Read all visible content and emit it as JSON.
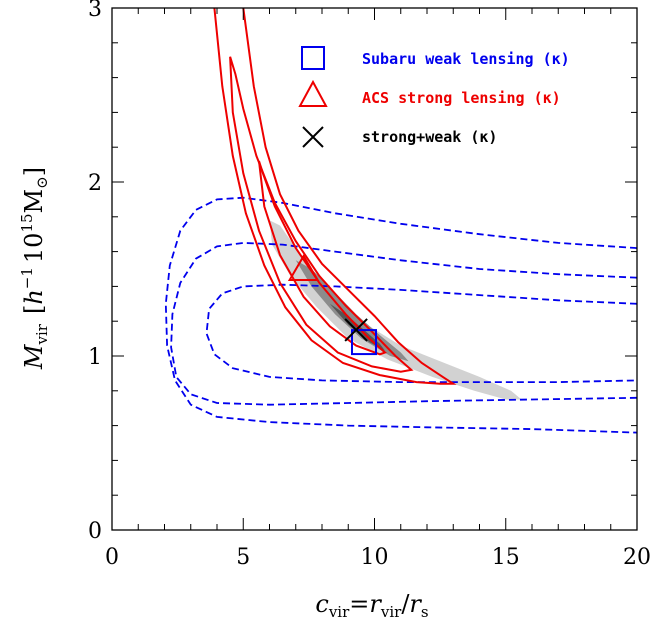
{
  "chart_data": {
    "type": "contour",
    "xlabel": "c_vir = r_vir / r_s",
    "xlabel_parts": {
      "c": "c",
      "c_sub": "vir",
      "eq": "=",
      "r": "r",
      "r_sub": "vir",
      "slash": "/",
      "rs": "r",
      "rs_sub": "s"
    },
    "ylabel": "M_vir [h^-1 10^15 M_sun]",
    "ylabel_parts": {
      "M": "M",
      "M_sub": "vir",
      "open": "[",
      "h": "h",
      "h_sup": "−1",
      "ten": "10",
      "ten_sup": "15",
      "Msun": "M",
      "Msun_sub": "⊙",
      "close": "]"
    },
    "xlim": [
      0,
      20
    ],
    "ylim": [
      0,
      3
    ],
    "xticks": [
      "0",
      "5",
      "10",
      "15",
      "20"
    ],
    "yticks": [
      "0",
      "1",
      "2",
      "3"
    ],
    "grid": false,
    "legend_position": "top-right",
    "series": [
      {
        "name": "Subaru weak lensing (κ)",
        "color": "#0000ee",
        "linestyle": "dashed",
        "marker": "square",
        "best_fit": [
          9.6,
          1.08
        ],
        "contours": [
          [
            [
              20,
              1.62
            ],
            [
              17,
              1.65
            ],
            [
              14,
              1.7
            ],
            [
              11,
              1.76
            ],
            [
              8.5,
              1.82
            ],
            [
              6.5,
              1.88
            ],
            [
              5,
              1.91
            ],
            [
              4,
              1.9
            ],
            [
              3.2,
              1.84
            ],
            [
              2.6,
              1.72
            ],
            [
              2.2,
              1.52
            ],
            [
              2.05,
              1.3
            ],
            [
              2.1,
              1.06
            ],
            [
              2.4,
              0.86
            ],
            [
              3,
              0.72
            ],
            [
              4,
              0.65
            ],
            [
              6,
              0.62
            ],
            [
              9,
              0.6
            ],
            [
              12,
              0.59
            ],
            [
              16,
              0.58
            ],
            [
              20,
              0.56
            ]
          ],
          [
            [
              20,
              1.45
            ],
            [
              17,
              1.47
            ],
            [
              14,
              1.5
            ],
            [
              11,
              1.55
            ],
            [
              8.5,
              1.6
            ],
            [
              6.5,
              1.64
            ],
            [
              5,
              1.65
            ],
            [
              4,
              1.63
            ],
            [
              3.2,
              1.56
            ],
            [
              2.6,
              1.42
            ],
            [
              2.3,
              1.24
            ],
            [
              2.25,
              1.05
            ],
            [
              2.45,
              0.88
            ],
            [
              3,
              0.78
            ],
            [
              4,
              0.73
            ],
            [
              6,
              0.72
            ],
            [
              9,
              0.73
            ],
            [
              12,
              0.74
            ],
            [
              16,
              0.75
            ],
            [
              20,
              0.76
            ]
          ],
          [
            [
              20,
              1.3
            ],
            [
              17,
              1.32
            ],
            [
              14,
              1.35
            ],
            [
              11,
              1.38
            ],
            [
              8.5,
              1.4
            ],
            [
              6.5,
              1.41
            ],
            [
              5,
              1.4
            ],
            [
              4.2,
              1.36
            ],
            [
              3.7,
              1.27
            ],
            [
              3.6,
              1.13
            ],
            [
              3.9,
              1.01
            ],
            [
              4.6,
              0.93
            ],
            [
              6,
              0.88
            ],
            [
              8,
              0.86
            ],
            [
              11,
              0.85
            ],
            [
              14,
              0.85
            ],
            [
              17,
              0.85
            ],
            [
              20,
              0.86
            ]
          ]
        ]
      },
      {
        "name": "ACS strong lensing (κ)",
        "color": "#ee0000",
        "linestyle": "solid",
        "marker": "triangle",
        "best_fit": [
          7.3,
          1.5
        ],
        "contours": [
          [
            [
              3.9,
              3.0
            ],
            [
              4.2,
              2.55
            ],
            [
              4.6,
              2.15
            ],
            [
              5.1,
              1.82
            ],
            [
              5.8,
              1.52
            ],
            [
              6.6,
              1.28
            ],
            [
              7.6,
              1.09
            ],
            [
              8.8,
              0.96
            ],
            [
              10.2,
              0.89
            ],
            [
              11.6,
              0.85
            ],
            [
              12.5,
              0.84
            ],
            [
              13.0,
              0.84
            ],
            [
              12.6,
              0.88
            ],
            [
              11.8,
              0.96
            ],
            [
              10.9,
              1.08
            ],
            [
              10.0,
              1.23
            ],
            [
              9.0,
              1.38
            ],
            [
              8.0,
              1.53
            ],
            [
              7.1,
              1.72
            ],
            [
              6.4,
              1.93
            ],
            [
              5.85,
              2.2
            ],
            [
              5.4,
              2.55
            ],
            [
              5.0,
              3.0
            ]
          ],
          [
            [
              4.5,
              2.72
            ],
            [
              4.6,
              2.4
            ],
            [
              5.0,
              2.05
            ],
            [
              5.6,
              1.72
            ],
            [
              6.4,
              1.42
            ],
            [
              7.4,
              1.18
            ],
            [
              8.6,
              1.02
            ],
            [
              9.9,
              0.94
            ],
            [
              11.0,
              0.91
            ],
            [
              11.4,
              0.92
            ],
            [
              10.8,
              1.0
            ],
            [
              9.9,
              1.14
            ],
            [
              8.9,
              1.29
            ],
            [
              7.9,
              1.46
            ],
            [
              7.0,
              1.66
            ],
            [
              6.2,
              1.88
            ],
            [
              5.5,
              2.15
            ],
            [
              5.0,
              2.42
            ],
            [
              4.7,
              2.62
            ],
            [
              4.5,
              2.72
            ]
          ],
          [
            [
              5.6,
              2.12
            ],
            [
              5.8,
              1.86
            ],
            [
              6.4,
              1.58
            ],
            [
              7.3,
              1.34
            ],
            [
              8.3,
              1.17
            ],
            [
              9.3,
              1.06
            ],
            [
              10.2,
              1.01
            ],
            [
              10.4,
              1.02
            ],
            [
              9.8,
              1.1
            ],
            [
              8.9,
              1.24
            ],
            [
              7.9,
              1.42
            ],
            [
              7.0,
              1.62
            ],
            [
              6.2,
              1.86
            ],
            [
              5.75,
              2.05
            ],
            [
              5.6,
              2.12
            ]
          ]
        ]
      },
      {
        "name": "strong+weak (κ)",
        "color": "#000000",
        "linestyle": "none",
        "marker": "x",
        "best_fit": [
          9.3,
          1.15
        ],
        "confidence_regions": [
          {
            "fill": "#d2d2d2",
            "polygon": [
              [
                6.0,
                1.78
              ],
              [
                6.1,
                1.64
              ],
              [
                6.8,
                1.46
              ],
              [
                7.8,
                1.28
              ],
              [
                9.0,
                1.1
              ],
              [
                10.5,
                0.98
              ],
              [
                12.2,
                0.88
              ],
              [
                13.8,
                0.8
              ],
              [
                15.0,
                0.75
              ],
              [
                15.6,
                0.75
              ],
              [
                15.2,
                0.8
              ],
              [
                14.0,
                0.88
              ],
              [
                12.5,
                0.97
              ],
              [
                11.0,
                1.06
              ],
              [
                9.5,
                1.2
              ],
              [
                8.2,
                1.38
              ],
              [
                7.2,
                1.58
              ],
              [
                6.4,
                1.75
              ],
              [
                6.0,
                1.78
              ]
            ]
          },
          {
            "fill": "#8c8c8c",
            "polygon": [
              [
                7.0,
                1.55
              ],
              [
                7.6,
                1.4
              ],
              [
                8.5,
                1.24
              ],
              [
                9.5,
                1.1
              ],
              [
                10.6,
                1.0
              ],
              [
                11.3,
                0.97
              ],
              [
                11.0,
                1.02
              ],
              [
                10.2,
                1.12
              ],
              [
                9.3,
                1.24
              ],
              [
                8.4,
                1.38
              ],
              [
                7.6,
                1.5
              ],
              [
                7.0,
                1.55
              ]
            ]
          },
          {
            "fill": "#555555",
            "polygon": [
              [
                8.3,
                1.3
              ],
              [
                9.0,
                1.18
              ],
              [
                9.8,
                1.08
              ],
              [
                10.4,
                1.03
              ],
              [
                10.2,
                1.07
              ],
              [
                9.6,
                1.15
              ],
              [
                8.9,
                1.24
              ],
              [
                8.3,
                1.3
              ]
            ]
          }
        ]
      }
    ]
  }
}
